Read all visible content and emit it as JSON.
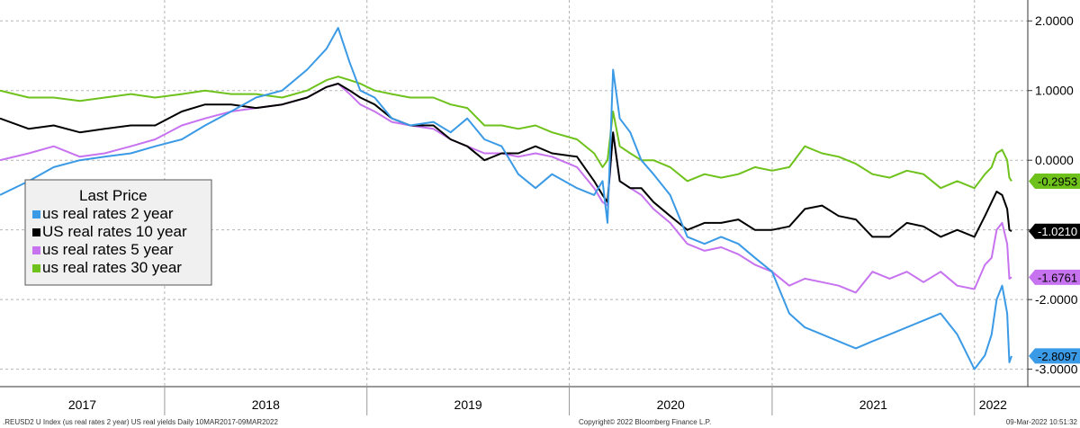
{
  "chart_data": {
    "type": "line",
    "title": "",
    "xlabel": "",
    "ylabel": "",
    "ylim": [
      -3.25,
      2.3
    ],
    "y_ticks": [
      "2.0000",
      "1.0000",
      "0.0000",
      "-1.0000",
      "-2.0000",
      "-3.0000"
    ],
    "y_tick_values": [
      2,
      1,
      0,
      -1,
      -2,
      -3
    ],
    "x_years": [
      "2017",
      "2018",
      "2019",
      "2020",
      "2021",
      "2022"
    ],
    "x_range": [
      "2017-03-10",
      "2022-03-09"
    ],
    "grid": true,
    "y_axis_side": "right",
    "legend": {
      "title": "Last Price",
      "placement": "left-middle",
      "entries": [
        {
          "label": "us real rates 2 year",
          "color": "#3b9ae6"
        },
        {
          "label": "US real rates 10 year",
          "color": "#000000"
        },
        {
          "label": "us real rates 5 year",
          "color": "#c773f0"
        },
        {
          "label": "us real rates 30 year",
          "color": "#6ec21b"
        }
      ]
    },
    "series": [
      {
        "name": "us real rates 2 year",
        "color": "#3b9ae6",
        "last_label": "-2.8097",
        "points": [
          [
            "2017-03-10",
            -0.5
          ],
          [
            "2017-05-01",
            -0.3
          ],
          [
            "2017-06-15",
            -0.1
          ],
          [
            "2017-08-01",
            0.0
          ],
          [
            "2017-09-15",
            0.05
          ],
          [
            "2017-11-01",
            0.1
          ],
          [
            "2017-12-15",
            0.2
          ],
          [
            "2018-02-01",
            0.3
          ],
          [
            "2018-03-15",
            0.5
          ],
          [
            "2018-05-01",
            0.7
          ],
          [
            "2018-06-15",
            0.9
          ],
          [
            "2018-08-01",
            1.0
          ],
          [
            "2018-09-15",
            1.3
          ],
          [
            "2018-10-20",
            1.6
          ],
          [
            "2018-11-10",
            1.9
          ],
          [
            "2018-12-01",
            1.4
          ],
          [
            "2018-12-20",
            1.0
          ],
          [
            "2019-01-15",
            0.9
          ],
          [
            "2019-02-15",
            0.6
          ],
          [
            "2019-03-20",
            0.5
          ],
          [
            "2019-05-01",
            0.55
          ],
          [
            "2019-06-01",
            0.4
          ],
          [
            "2019-07-01",
            0.6
          ],
          [
            "2019-08-01",
            0.3
          ],
          [
            "2019-09-01",
            0.2
          ],
          [
            "2019-10-01",
            -0.2
          ],
          [
            "2019-11-01",
            -0.4
          ],
          [
            "2019-12-01",
            -0.2
          ],
          [
            "2020-01-15",
            -0.4
          ],
          [
            "2020-02-15",
            -0.5
          ],
          [
            "2020-03-01",
            -0.3
          ],
          [
            "2020-03-10",
            -0.9
          ],
          [
            "2020-03-20",
            1.3
          ],
          [
            "2020-04-01",
            0.6
          ],
          [
            "2020-04-20",
            0.4
          ],
          [
            "2020-05-10",
            0.0
          ],
          [
            "2020-06-01",
            -0.2
          ],
          [
            "2020-07-01",
            -0.5
          ],
          [
            "2020-08-01",
            -1.1
          ],
          [
            "2020-09-01",
            -1.2
          ],
          [
            "2020-10-01",
            -1.1
          ],
          [
            "2020-11-01",
            -1.2
          ],
          [
            "2020-12-01",
            -1.4
          ],
          [
            "2021-01-01",
            -1.6
          ],
          [
            "2021-02-01",
            -2.2
          ],
          [
            "2021-03-01",
            -2.4
          ],
          [
            "2021-04-01",
            -2.5
          ],
          [
            "2021-05-01",
            -2.6
          ],
          [
            "2021-06-01",
            -2.7
          ],
          [
            "2021-07-01",
            -2.6
          ],
          [
            "2021-08-01",
            -2.5
          ],
          [
            "2021-09-01",
            -2.4
          ],
          [
            "2021-10-01",
            -2.3
          ],
          [
            "2021-11-01",
            -2.2
          ],
          [
            "2021-12-01",
            -2.5
          ],
          [
            "2022-01-01",
            -3.0
          ],
          [
            "2022-01-20",
            -2.8
          ],
          [
            "2022-02-01",
            -2.5
          ],
          [
            "2022-02-10",
            -2.0
          ],
          [
            "2022-02-20",
            -1.8
          ],
          [
            "2022-03-01",
            -2.2
          ],
          [
            "2022-03-05",
            -2.9
          ],
          [
            "2022-03-09",
            -2.81
          ]
        ]
      },
      {
        "name": "US real rates 10 year",
        "color": "#000000",
        "last_label": "-1.0210",
        "points": [
          [
            "2017-03-10",
            0.6
          ],
          [
            "2017-05-01",
            0.45
          ],
          [
            "2017-06-15",
            0.5
          ],
          [
            "2017-08-01",
            0.4
          ],
          [
            "2017-09-15",
            0.45
          ],
          [
            "2017-11-01",
            0.5
          ],
          [
            "2017-12-15",
            0.5
          ],
          [
            "2018-02-01",
            0.7
          ],
          [
            "2018-03-15",
            0.8
          ],
          [
            "2018-05-01",
            0.8
          ],
          [
            "2018-06-15",
            0.75
          ],
          [
            "2018-08-01",
            0.8
          ],
          [
            "2018-09-15",
            0.9
          ],
          [
            "2018-10-20",
            1.05
          ],
          [
            "2018-11-10",
            1.1
          ],
          [
            "2018-12-01",
            1.0
          ],
          [
            "2018-12-20",
            0.9
          ],
          [
            "2019-01-15",
            0.8
          ],
          [
            "2019-02-15",
            0.6
          ],
          [
            "2019-03-20",
            0.5
          ],
          [
            "2019-05-01",
            0.5
          ],
          [
            "2019-06-01",
            0.3
          ],
          [
            "2019-07-01",
            0.2
          ],
          [
            "2019-08-01",
            0.0
          ],
          [
            "2019-09-01",
            0.1
          ],
          [
            "2019-10-01",
            0.1
          ],
          [
            "2019-11-01",
            0.2
          ],
          [
            "2019-12-01",
            0.1
          ],
          [
            "2020-01-15",
            0.05
          ],
          [
            "2020-02-15",
            -0.3
          ],
          [
            "2020-03-01",
            -0.5
          ],
          [
            "2020-03-10",
            -0.6
          ],
          [
            "2020-03-20",
            0.4
          ],
          [
            "2020-04-01",
            -0.3
          ],
          [
            "2020-04-20",
            -0.4
          ],
          [
            "2020-05-10",
            -0.4
          ],
          [
            "2020-06-01",
            -0.6
          ],
          [
            "2020-07-01",
            -0.8
          ],
          [
            "2020-08-01",
            -1.0
          ],
          [
            "2020-09-01",
            -0.9
          ],
          [
            "2020-10-01",
            -0.9
          ],
          [
            "2020-11-01",
            -0.85
          ],
          [
            "2020-12-01",
            -1.0
          ],
          [
            "2021-01-01",
            -1.0
          ],
          [
            "2021-02-01",
            -0.95
          ],
          [
            "2021-03-01",
            -0.7
          ],
          [
            "2021-04-01",
            -0.65
          ],
          [
            "2021-05-01",
            -0.8
          ],
          [
            "2021-06-01",
            -0.85
          ],
          [
            "2021-07-01",
            -1.1
          ],
          [
            "2021-08-01",
            -1.1
          ],
          [
            "2021-09-01",
            -0.9
          ],
          [
            "2021-10-01",
            -0.95
          ],
          [
            "2021-11-01",
            -1.1
          ],
          [
            "2021-12-01",
            -1.0
          ],
          [
            "2022-01-01",
            -1.1
          ],
          [
            "2022-01-20",
            -0.8
          ],
          [
            "2022-02-01",
            -0.6
          ],
          [
            "2022-02-10",
            -0.45
          ],
          [
            "2022-02-20",
            -0.5
          ],
          [
            "2022-03-01",
            -0.7
          ],
          [
            "2022-03-05",
            -1.0
          ],
          [
            "2022-03-09",
            -1.02
          ]
        ]
      },
      {
        "name": "us real rates 5 year",
        "color": "#c773f0",
        "last_label": "-1.6761",
        "points": [
          [
            "2017-03-10",
            0.0
          ],
          [
            "2017-05-01",
            0.1
          ],
          [
            "2017-06-15",
            0.2
          ],
          [
            "2017-08-01",
            0.05
          ],
          [
            "2017-09-15",
            0.1
          ],
          [
            "2017-11-01",
            0.2
          ],
          [
            "2017-12-15",
            0.3
          ],
          [
            "2018-02-01",
            0.5
          ],
          [
            "2018-03-15",
            0.6
          ],
          [
            "2018-05-01",
            0.7
          ],
          [
            "2018-06-15",
            0.75
          ],
          [
            "2018-08-01",
            0.8
          ],
          [
            "2018-09-15",
            0.9
          ],
          [
            "2018-10-20",
            1.05
          ],
          [
            "2018-11-10",
            1.1
          ],
          [
            "2018-12-01",
            0.95
          ],
          [
            "2018-12-20",
            0.8
          ],
          [
            "2019-01-15",
            0.7
          ],
          [
            "2019-02-15",
            0.55
          ],
          [
            "2019-03-20",
            0.5
          ],
          [
            "2019-05-01",
            0.45
          ],
          [
            "2019-06-01",
            0.3
          ],
          [
            "2019-07-01",
            0.2
          ],
          [
            "2019-08-01",
            0.1
          ],
          [
            "2019-09-01",
            0.1
          ],
          [
            "2019-10-01",
            0.05
          ],
          [
            "2019-11-01",
            0.1
          ],
          [
            "2019-12-01",
            0.05
          ],
          [
            "2020-01-15",
            -0.1
          ],
          [
            "2020-02-15",
            -0.4
          ],
          [
            "2020-03-01",
            -0.6
          ],
          [
            "2020-03-10",
            -0.65
          ],
          [
            "2020-03-20",
            0.4
          ],
          [
            "2020-04-01",
            -0.3
          ],
          [
            "2020-04-20",
            -0.4
          ],
          [
            "2020-05-10",
            -0.5
          ],
          [
            "2020-06-01",
            -0.7
          ],
          [
            "2020-07-01",
            -0.9
          ],
          [
            "2020-08-01",
            -1.2
          ],
          [
            "2020-09-01",
            -1.3
          ],
          [
            "2020-10-01",
            -1.25
          ],
          [
            "2020-11-01",
            -1.35
          ],
          [
            "2020-12-01",
            -1.5
          ],
          [
            "2021-01-01",
            -1.6
          ],
          [
            "2021-02-01",
            -1.8
          ],
          [
            "2021-03-01",
            -1.7
          ],
          [
            "2021-04-01",
            -1.75
          ],
          [
            "2021-05-01",
            -1.8
          ],
          [
            "2021-06-01",
            -1.9
          ],
          [
            "2021-07-01",
            -1.6
          ],
          [
            "2021-08-01",
            -1.7
          ],
          [
            "2021-09-01",
            -1.6
          ],
          [
            "2021-10-01",
            -1.75
          ],
          [
            "2021-11-01",
            -1.6
          ],
          [
            "2021-12-01",
            -1.8
          ],
          [
            "2022-01-01",
            -1.85
          ],
          [
            "2022-01-20",
            -1.5
          ],
          [
            "2022-02-01",
            -1.4
          ],
          [
            "2022-02-10",
            -1.0
          ],
          [
            "2022-02-20",
            -0.9
          ],
          [
            "2022-03-01",
            -1.2
          ],
          [
            "2022-03-05",
            -1.7
          ],
          [
            "2022-03-09",
            -1.68
          ]
        ]
      },
      {
        "name": "us real rates 30 year",
        "color": "#6ec21b",
        "last_label": "-0.2953",
        "points": [
          [
            "2017-03-10",
            1.0
          ],
          [
            "2017-05-01",
            0.9
          ],
          [
            "2017-06-15",
            0.9
          ],
          [
            "2017-08-01",
            0.85
          ],
          [
            "2017-09-15",
            0.9
          ],
          [
            "2017-11-01",
            0.95
          ],
          [
            "2017-12-15",
            0.9
          ],
          [
            "2018-02-01",
            0.95
          ],
          [
            "2018-03-15",
            1.0
          ],
          [
            "2018-05-01",
            0.95
          ],
          [
            "2018-06-15",
            0.95
          ],
          [
            "2018-08-01",
            0.9
          ],
          [
            "2018-09-15",
            1.0
          ],
          [
            "2018-10-20",
            1.15
          ],
          [
            "2018-11-10",
            1.2
          ],
          [
            "2018-12-01",
            1.15
          ],
          [
            "2018-12-20",
            1.1
          ],
          [
            "2019-01-15",
            1.0
          ],
          [
            "2019-02-15",
            0.95
          ],
          [
            "2019-03-20",
            0.9
          ],
          [
            "2019-05-01",
            0.9
          ],
          [
            "2019-06-01",
            0.8
          ],
          [
            "2019-07-01",
            0.75
          ],
          [
            "2019-08-01",
            0.5
          ],
          [
            "2019-09-01",
            0.5
          ],
          [
            "2019-10-01",
            0.45
          ],
          [
            "2019-11-01",
            0.5
          ],
          [
            "2019-12-01",
            0.4
          ],
          [
            "2020-01-15",
            0.3
          ],
          [
            "2020-02-15",
            0.1
          ],
          [
            "2020-03-01",
            -0.1
          ],
          [
            "2020-03-10",
            0.0
          ],
          [
            "2020-03-20",
            0.7
          ],
          [
            "2020-04-01",
            0.2
          ],
          [
            "2020-04-20",
            0.1
          ],
          [
            "2020-05-10",
            0.0
          ],
          [
            "2020-06-01",
            0.0
          ],
          [
            "2020-07-01",
            -0.1
          ],
          [
            "2020-08-01",
            -0.3
          ],
          [
            "2020-09-01",
            -0.2
          ],
          [
            "2020-10-01",
            -0.25
          ],
          [
            "2020-11-01",
            -0.2
          ],
          [
            "2020-12-01",
            -0.1
          ],
          [
            "2021-01-01",
            -0.15
          ],
          [
            "2021-02-01",
            -0.1
          ],
          [
            "2021-03-01",
            0.2
          ],
          [
            "2021-04-01",
            0.1
          ],
          [
            "2021-05-01",
            0.05
          ],
          [
            "2021-06-01",
            -0.05
          ],
          [
            "2021-07-01",
            -0.2
          ],
          [
            "2021-08-01",
            -0.25
          ],
          [
            "2021-09-01",
            -0.15
          ],
          [
            "2021-10-01",
            -0.2
          ],
          [
            "2021-11-01",
            -0.4
          ],
          [
            "2021-12-01",
            -0.3
          ],
          [
            "2022-01-01",
            -0.4
          ],
          [
            "2022-01-20",
            -0.2
          ],
          [
            "2022-02-01",
            -0.1
          ],
          [
            "2022-02-10",
            0.1
          ],
          [
            "2022-02-20",
            0.15
          ],
          [
            "2022-03-01",
            0.0
          ],
          [
            "2022-03-05",
            -0.25
          ],
          [
            "2022-03-09",
            -0.3
          ]
        ]
      }
    ]
  },
  "footer": {
    "left": ".REUSD2 U Index (us real rates 2 year) US real yields  Daily 10MAR2017-09MAR2022",
    "center": "Copyright© 2022 Bloomberg Finance L.P.",
    "right": "09-Mar-2022 10:51:32"
  }
}
